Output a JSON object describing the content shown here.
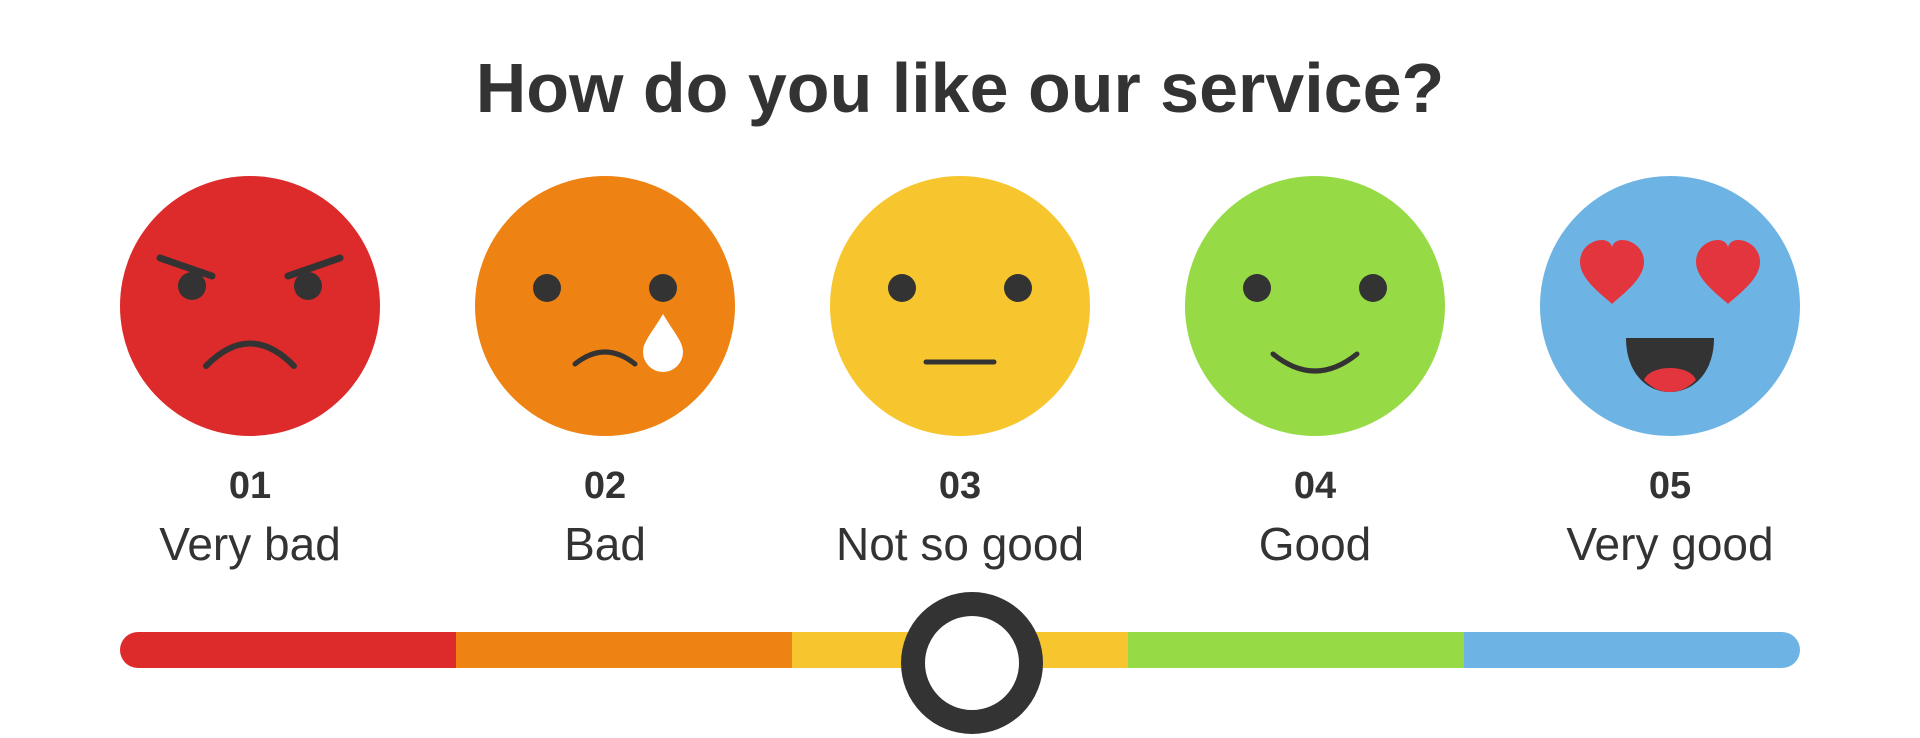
{
  "title": "How do you like our service?",
  "options": [
    {
      "number": "01",
      "label": "Very bad",
      "color": "#DD2A2A",
      "face_icon": "angry-face-icon"
    },
    {
      "number": "02",
      "label": "Bad",
      "color": "#EE8212",
      "face_icon": "crying-face-icon"
    },
    {
      "number": "03",
      "label": "Not so good",
      "color": "#F7C62F",
      "face_icon": "neutral-face-icon"
    },
    {
      "number": "04",
      "label": "Good",
      "color": "#96DB45",
      "face_icon": "smiling-face-icon"
    },
    {
      "number": "05",
      "label": "Very good",
      "color": "#6DB4E4",
      "face_icon": "heart-eyes-face-icon"
    }
  ],
  "slider": {
    "value_fraction": 0.5,
    "handle_color": "#333333"
  }
}
